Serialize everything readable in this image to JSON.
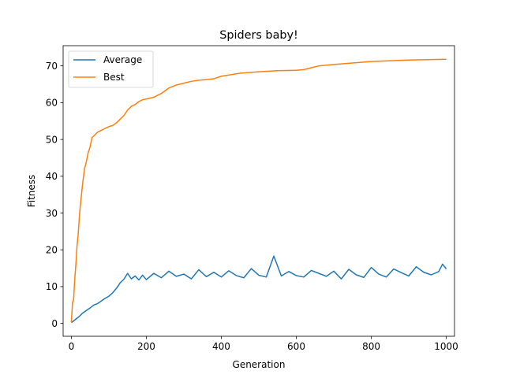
{
  "chart_data": {
    "type": "line",
    "title": "Spiders baby!",
    "xlabel": "Generation",
    "ylabel": "Fitness",
    "xlim": [
      -22,
      1022
    ],
    "ylim": [
      -3.5,
      75.5
    ],
    "xticks": [
      0,
      200,
      400,
      600,
      800,
      1000
    ],
    "yticks": [
      0,
      10,
      20,
      30,
      40,
      50,
      60,
      70
    ],
    "grid": false,
    "legend_position": "upper-left",
    "series": [
      {
        "name": "Average",
        "color": "#1f77b4",
        "x": [
          0,
          10,
          20,
          30,
          40,
          50,
          60,
          70,
          80,
          90,
          100,
          110,
          120,
          130,
          140,
          150,
          160,
          170,
          180,
          190,
          200,
          220,
          240,
          260,
          280,
          300,
          320,
          340,
          360,
          380,
          400,
          420,
          440,
          460,
          480,
          500,
          520,
          540,
          560,
          580,
          600,
          620,
          640,
          660,
          680,
          700,
          720,
          740,
          760,
          780,
          800,
          820,
          840,
          860,
          880,
          900,
          920,
          940,
          960,
          980,
          990,
          1000
        ],
        "y": [
          0.2,
          1.0,
          1.8,
          2.8,
          3.5,
          4.2,
          5.0,
          5.4,
          6.1,
          6.8,
          7.4,
          8.3,
          9.5,
          11.0,
          12.0,
          13.6,
          12.1,
          12.9,
          11.8,
          13.1,
          11.9,
          13.6,
          12.4,
          14.2,
          12.8,
          13.4,
          12.1,
          14.6,
          12.7,
          13.9,
          12.6,
          14.3,
          13.0,
          12.4,
          14.9,
          13.1,
          12.6,
          18.3,
          12.9,
          14.1,
          13.0,
          12.6,
          14.4,
          13.6,
          12.8,
          14.2,
          12.1,
          14.7,
          13.2,
          12.5,
          15.2,
          13.4,
          12.6,
          14.8,
          13.8,
          12.9,
          15.4,
          13.9,
          13.2,
          14.1,
          16.1,
          14.8
        ]
      },
      {
        "name": "Best",
        "color": "#ff7f0e",
        "x": [
          0,
          3,
          6,
          9,
          12,
          15,
          18,
          22,
          26,
          30,
          35,
          40,
          45,
          50,
          55,
          60,
          70,
          80,
          90,
          100,
          110,
          120,
          130,
          140,
          150,
          160,
          170,
          180,
          190,
          200,
          220,
          240,
          260,
          280,
          300,
          320,
          340,
          360,
          380,
          400,
          450,
          500,
          550,
          600,
          620,
          640,
          660,
          700,
          750,
          800,
          850,
          900,
          950,
          1000
        ],
        "y": [
          0.3,
          5.6,
          6.5,
          12.0,
          16.0,
          21.0,
          24.0,
          30.0,
          34.0,
          38.0,
          42.0,
          44.0,
          46.5,
          48.0,
          50.5,
          51.0,
          52.0,
          52.5,
          53.0,
          53.5,
          53.8,
          54.5,
          55.5,
          56.5,
          58.0,
          59.0,
          59.5,
          60.3,
          60.8,
          61.0,
          61.5,
          62.5,
          64.0,
          64.8,
          65.3,
          65.8,
          66.1,
          66.3,
          66.5,
          67.2,
          68.0,
          68.4,
          68.7,
          68.8,
          69.0,
          69.5,
          70.0,
          70.4,
          70.8,
          71.2,
          71.4,
          71.6,
          71.7,
          71.8
        ]
      }
    ]
  }
}
